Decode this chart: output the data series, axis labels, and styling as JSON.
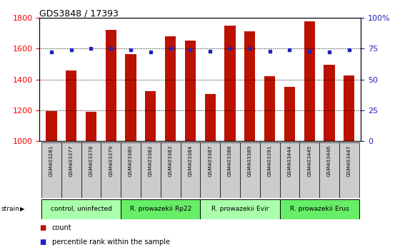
{
  "title": "GDS3848 / 17393",
  "samples": [
    "GSM403281",
    "GSM403377",
    "GSM403378",
    "GSM403379",
    "GSM403380",
    "GSM403382",
    "GSM403383",
    "GSM403384",
    "GSM403387",
    "GSM403388",
    "GSM403389",
    "GSM403391",
    "GSM403444",
    "GSM403445",
    "GSM403446",
    "GSM403447"
  ],
  "counts": [
    1195,
    1460,
    1190,
    1720,
    1565,
    1325,
    1680,
    1650,
    1305,
    1750,
    1710,
    1420,
    1350,
    1775,
    1495,
    1425
  ],
  "percentiles": [
    72,
    74,
    75,
    75,
    74,
    72,
    75,
    74,
    73,
    75,
    75,
    73,
    74,
    73,
    72,
    74
  ],
  "groups": [
    {
      "label": "control, uninfected",
      "start": 0,
      "end": 4,
      "color": "#aaffaa"
    },
    {
      "label": "R. prowazekii Rp22",
      "start": 4,
      "end": 8,
      "color": "#66ee66"
    },
    {
      "label": "R. prowazekii Evir",
      "start": 8,
      "end": 12,
      "color": "#aaffaa"
    },
    {
      "label": "R. prowazekii Erus",
      "start": 12,
      "end": 16,
      "color": "#66ee66"
    }
  ],
  "ylim_left": [
    1000,
    1800
  ],
  "ylim_right": [
    0,
    100
  ],
  "yticks_left": [
    1000,
    1200,
    1400,
    1600,
    1800
  ],
  "yticks_right": [
    0,
    25,
    50,
    75,
    100
  ],
  "ytick_labels_right": [
    "0",
    "25",
    "50",
    "75",
    "100%"
  ],
  "bar_color": "#bb1100",
  "dot_color": "#2222bb",
  "plot_bg": "#ffffff",
  "label_bg": "#cccccc",
  "grid_color": "black",
  "legend_count": "count",
  "legend_percentile": "percentile rank within the sample"
}
